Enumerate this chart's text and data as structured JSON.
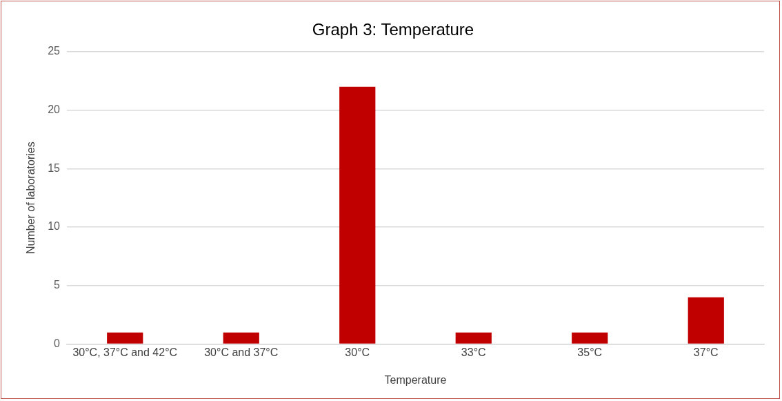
{
  "chart_data": {
    "type": "bar",
    "title": "Graph 3: Temperature",
    "xlabel": "Temperature",
    "ylabel": "Number of laboratories",
    "categories": [
      "30°C, 37°C and 42°C",
      "30°C and 37°C",
      "30°C",
      "33°C",
      "35°C",
      "37°C"
    ],
    "values": [
      1,
      1,
      22,
      1,
      1,
      4
    ],
    "color": "#c00000",
    "ylim": [
      0,
      25
    ],
    "yticks": [
      0,
      5,
      10,
      15,
      20,
      25
    ],
    "grid": "y"
  }
}
